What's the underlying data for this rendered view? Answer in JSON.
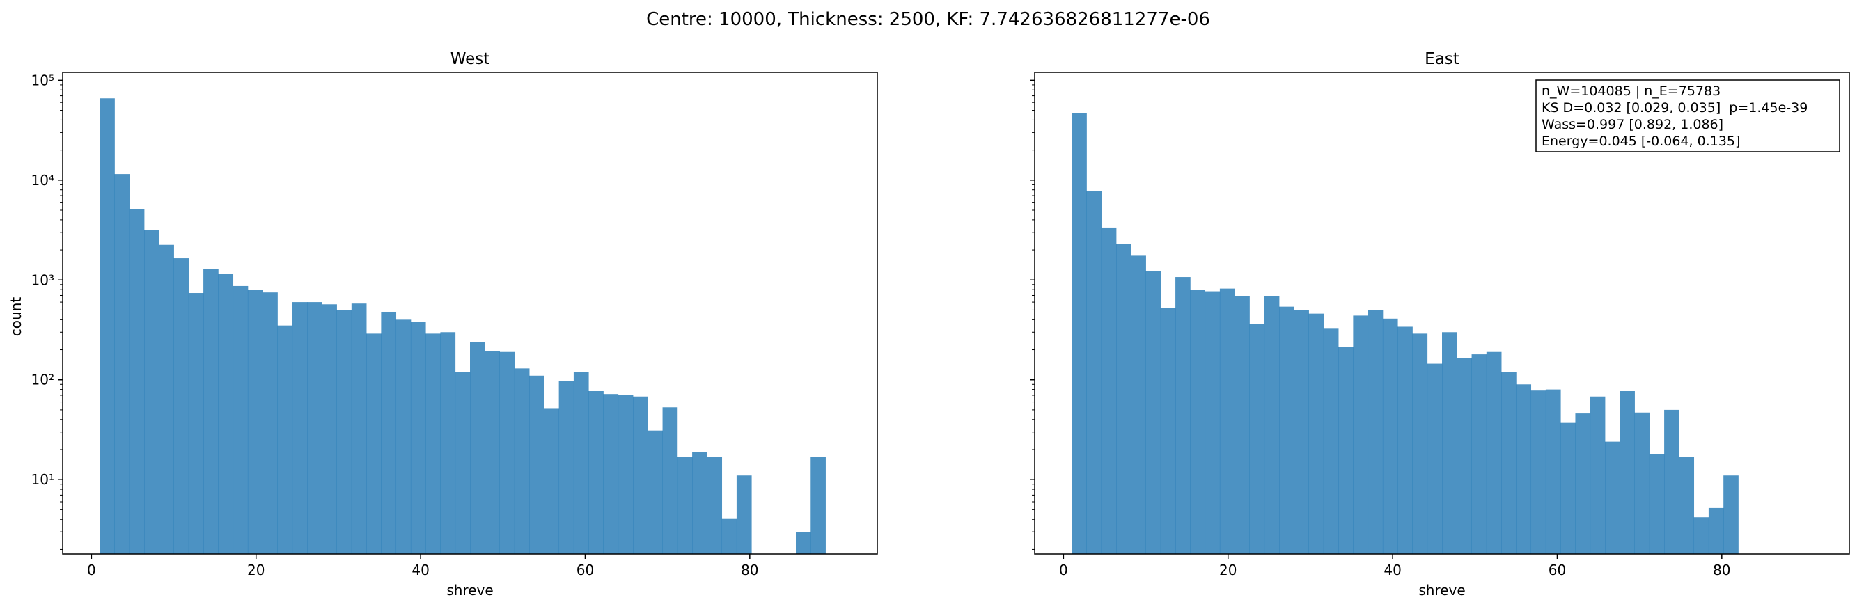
{
  "figure": {
    "suptitle": "Centre: 10000, Thickness: 2500, KF: 7.742636826811277e-06"
  },
  "colors": {
    "bar": "#1f77b4",
    "bar_alpha": 0.8,
    "axes": "#000000",
    "background": "#ffffff"
  },
  "chart_data": [
    {
      "type": "bar",
      "title": "West",
      "xlabel": "shreve",
      "ylabel": "count",
      "yscale": "log",
      "xlim": [
        -3.5,
        95.5
      ],
      "ylim": [
        1.8,
        120000
      ],
      "xticks": [
        0,
        20,
        40,
        60,
        80
      ],
      "xtick_labels": [
        "0",
        "20",
        "40",
        "60",
        "80"
      ],
      "yticks": [
        10,
        100,
        1000,
        10000,
        100000
      ],
      "ytick_labels": [
        "10¹",
        "10²",
        "10³",
        "10⁴",
        "10⁵"
      ],
      "bin_start": 1,
      "bin_width": 1.8,
      "values": [
        66000,
        11500,
        5100,
        3150,
        2250,
        1650,
        740,
        1280,
        1150,
        870,
        800,
        750,
        350,
        600,
        600,
        570,
        500,
        580,
        290,
        480,
        400,
        380,
        290,
        300,
        120,
        240,
        195,
        190,
        130,
        110,
        52,
        97,
        120,
        77,
        72,
        70,
        68,
        31,
        53,
        17,
        19,
        17,
        4.1,
        11,
        0,
        0,
        0,
        3,
        17
      ],
      "grid": false,
      "legend": "none"
    },
    {
      "type": "bar",
      "title": "East",
      "xlabel": "shreve",
      "ylabel": "",
      "yscale": "log",
      "xlim": [
        -3.5,
        95.5
      ],
      "ylim": [
        1.8,
        120000
      ],
      "xticks": [
        0,
        20,
        40,
        60,
        80
      ],
      "xtick_labels": [
        "0",
        "20",
        "40",
        "60",
        "80"
      ],
      "yticks": [
        10,
        100,
        1000,
        10000,
        100000
      ],
      "ytick_labels": [],
      "bin_start": 1,
      "bin_width": 1.8,
      "values": [
        47000,
        7800,
        3350,
        2300,
        1750,
        1220,
        520,
        1070,
        800,
        770,
        820,
        690,
        360,
        690,
        540,
        500,
        460,
        330,
        215,
        440,
        500,
        410,
        340,
        290,
        145,
        300,
        165,
        180,
        190,
        120,
        90,
        78,
        80,
        37,
        46,
        68,
        24,
        77,
        47,
        18,
        50,
        17,
        4.2,
        5.2,
        11
      ],
      "grid": false,
      "legend": "none",
      "stats_box": [
        "n_W=104085 | n_E=75783",
        "KS D=0.032 [0.029, 0.035]  p=1.45e-39",
        "Wass=0.997 [0.892, 1.086]",
        "Energy=0.045 [-0.064, 0.135]"
      ]
    }
  ]
}
